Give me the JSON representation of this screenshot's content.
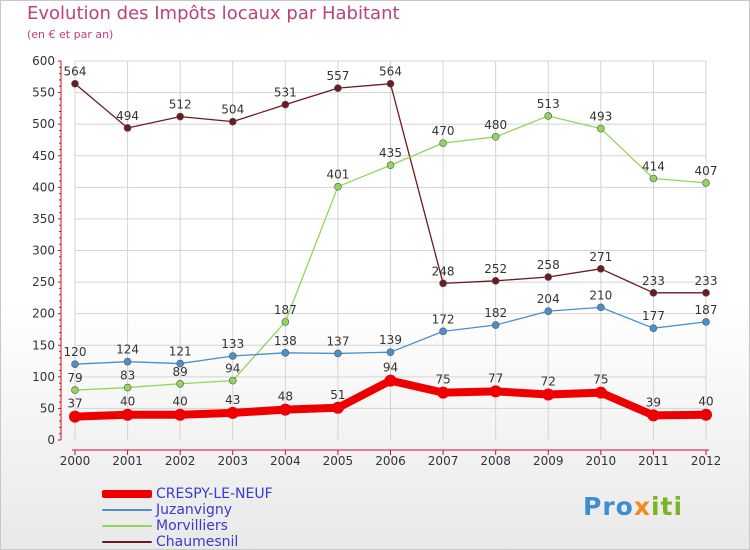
{
  "title": "Evolution des Impôts locaux par Habitant",
  "subtitle": "(en € et par an)",
  "brand": {
    "part1": "Pro",
    "part2": "x",
    "part3": "iti"
  },
  "colors": {
    "title": "#c0407a",
    "axis": "#c8102e",
    "grid": "#d4d4d4",
    "legend_text": "#3a3acf",
    "label_text": "#333333"
  },
  "chart_data": {
    "type": "line",
    "title": "Evolution des Impôts locaux par Habitant",
    "subtitle": "(en € et par an)",
    "x": [
      "2000",
      "2001",
      "2002",
      "2003",
      "2004",
      "2005",
      "2006",
      "2007",
      "2008",
      "2009",
      "2010",
      "2011",
      "2012"
    ],
    "ylim": [
      0,
      600
    ],
    "yticks": [
      0,
      50,
      100,
      150,
      200,
      250,
      300,
      350,
      400,
      450,
      500,
      550,
      600
    ],
    "grid": true,
    "legend_position": "bottom-left",
    "series": [
      {
        "name": "CRESPY-LE-NEUF",
        "color": "#ee0000",
        "line_width": 8,
        "marker_radius": 6,
        "values": [
          37,
          40,
          40,
          43,
          48,
          51,
          94,
          75,
          77,
          72,
          75,
          39,
          40
        ]
      },
      {
        "name": "Juzanvigny",
        "color": "#4a90cc",
        "line_width": 1.3,
        "marker_radius": 3.5,
        "values": [
          120,
          124,
          121,
          133,
          138,
          137,
          139,
          172,
          182,
          204,
          210,
          177,
          187
        ]
      },
      {
        "name": "Morvilliers",
        "color": "#8fd65a",
        "line_width": 1.3,
        "marker_radius": 3.5,
        "values": [
          79,
          83,
          89,
          94,
          187,
          401,
          435,
          470,
          480,
          513,
          493,
          414,
          407
        ]
      },
      {
        "name": "Chaumesnil",
        "color": "#6b1a22",
        "line_width": 1.3,
        "marker_radius": 3.5,
        "values": [
          564,
          494,
          512,
          504,
          531,
          557,
          564,
          248,
          252,
          258,
          271,
          233,
          233
        ]
      }
    ]
  }
}
